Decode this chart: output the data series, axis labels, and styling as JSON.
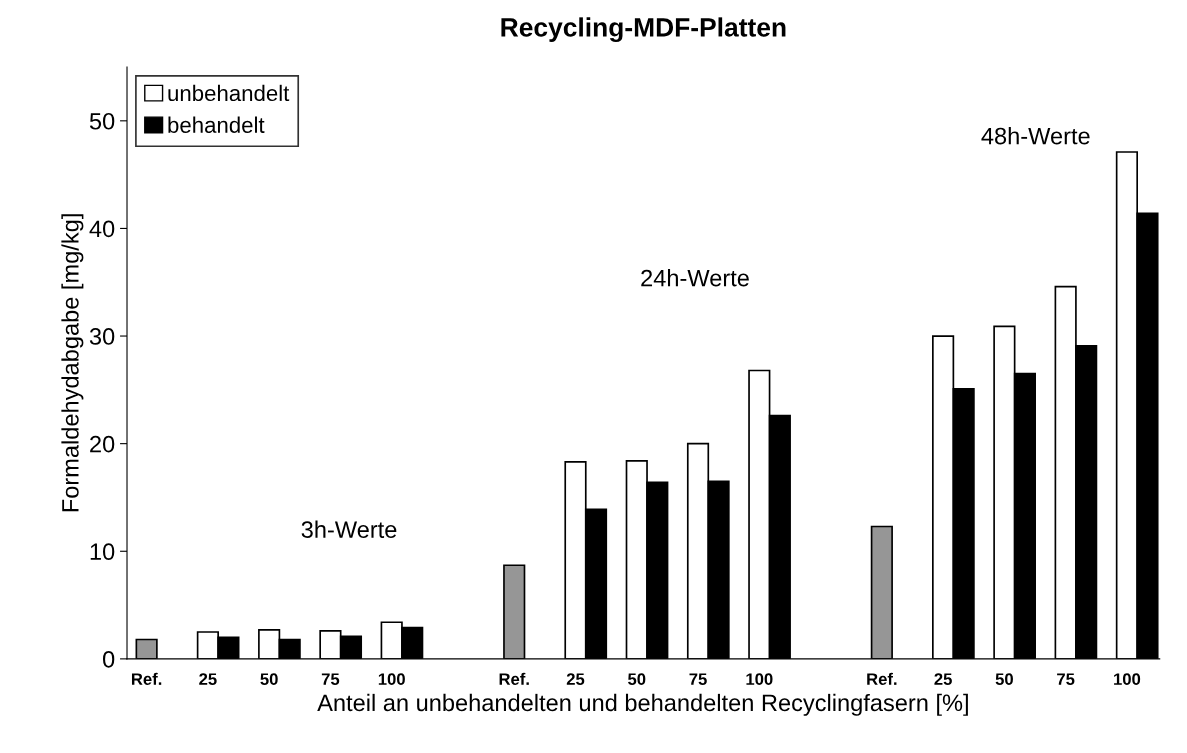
{
  "chart_data": {
    "type": "bar",
    "title": "Recycling-MDF-Platten",
    "xlabel": "Anteil an unbehandelten und behandelten Recyclingfasern [%]",
    "ylabel": "Formaldehydabgabe [mg/kg]",
    "categories": [
      "Ref.",
      "25",
      "50",
      "75",
      "100",
      null,
      "Ref.",
      "25",
      "50",
      "75",
      "100",
      null,
      "Ref.",
      "25",
      "50",
      "75",
      "100"
    ],
    "series": [
      {
        "color": "#969696",
        "values": [
          1.8,
          null,
          null,
          null,
          null,
          null,
          8.7,
          null,
          null,
          null,
          null,
          null,
          12.3,
          null,
          null,
          null,
          null
        ]
      },
      {
        "name": "unbehandelt",
        "color": "#ffffff",
        "values": [
          null,
          2.5,
          2.7,
          2.6,
          3.4,
          null,
          null,
          18.3,
          18.4,
          20.0,
          26.8,
          null,
          null,
          30.0,
          30.9,
          34.6,
          47.1
        ]
      },
      {
        "name": "behandelt",
        "color": "#000000",
        "values": [
          null,
          2.0,
          1.8,
          2.1,
          2.9,
          null,
          null,
          13.9,
          16.4,
          16.5,
          22.6,
          null,
          null,
          25.1,
          26.5,
          29.1,
          41.4
        ]
      }
    ],
    "annotations": [
      "3h-Werte",
      "24h-Werte",
      "48h-Werte"
    ],
    "ylim": [
      0,
      55
    ],
    "yticks": [
      0,
      10,
      20,
      30,
      40,
      50
    ],
    "grid": false,
    "legend": "top left"
  }
}
